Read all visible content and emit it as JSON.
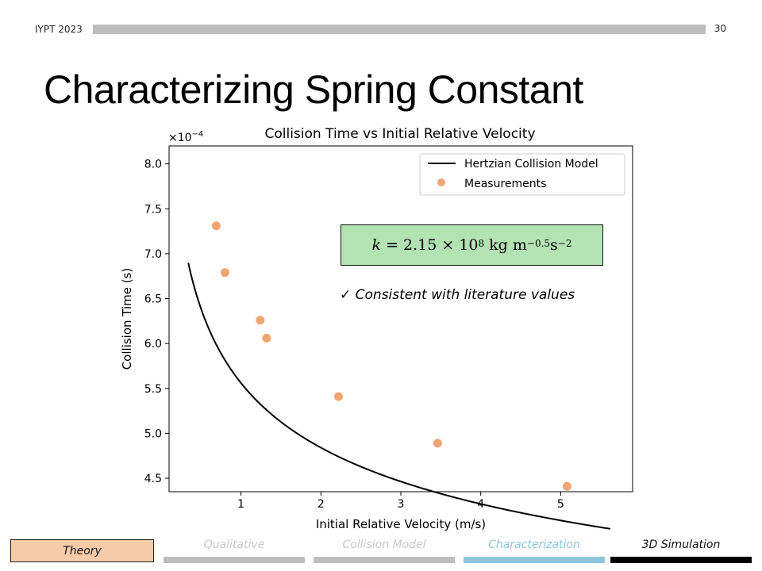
{
  "header": {
    "event": "IYPT 2023",
    "page_number": "30"
  },
  "slide": {
    "title": "Characterizing Spring Constant",
    "formula": {
      "lhs": "k",
      "coef": "= 2.15 × 10",
      "exp": "8",
      "units": " kg m",
      "unit_exp1": "−0.5",
      "s": "s",
      "unit_exp2": "−2"
    },
    "note": {
      "check": "✓",
      "text": "Consistent with literature values"
    }
  },
  "nav": {
    "theory": "Theory",
    "tabs": [
      {
        "label": "Qualitative",
        "text_color": "#c8c8c8",
        "bar_color": "#bdbdbd"
      },
      {
        "label": "Collision Model",
        "text_color": "#c8c8c8",
        "bar_color": "#bdbdbd"
      },
      {
        "label": "Characterization",
        "text_color": "#8ec5dc",
        "bar_color": "#8ec5dc"
      },
      {
        "label": "3D Simulation",
        "text_color": "#111111",
        "bar_color": "#000000"
      }
    ]
  },
  "chart_data": {
    "type": "scatter",
    "title": "Collision Time vs Initial Relative Velocity",
    "xlabel": "Initial Relative Velocity (m/s)",
    "ylabel": "Collision Time (s)",
    "y_scale_label": "×10",
    "y_scale_exp": "−4",
    "xlim": [
      0.1,
      5.9
    ],
    "ylim": [
      4.35,
      8.2
    ],
    "xticks": [
      1,
      2,
      3,
      4,
      5
    ],
    "yticks": [
      4.5,
      5.0,
      5.5,
      6.0,
      6.5,
      7.0,
      7.5,
      8.0
    ],
    "ytick_labels": [
      "4.5",
      "5.0",
      "5.5",
      "6.0",
      "6.5",
      "7.0",
      "7.5",
      "8.0"
    ],
    "grid": false,
    "legend_position": "top-right",
    "model": {
      "name": "Hertzian Collision Model",
      "color": "#000000",
      "x_start": 0.34,
      "x_end": 5.62,
      "power": -0.2,
      "coefficient": 5.56
    },
    "measurements": {
      "name": "Measurements",
      "color": "#f0a572",
      "x": [
        0.69,
        0.8,
        1.24,
        1.32,
        2.22,
        3.46,
        5.08
      ],
      "y": [
        7.31,
        6.79,
        6.26,
        6.06,
        5.41,
        4.89,
        4.41
      ]
    }
  }
}
